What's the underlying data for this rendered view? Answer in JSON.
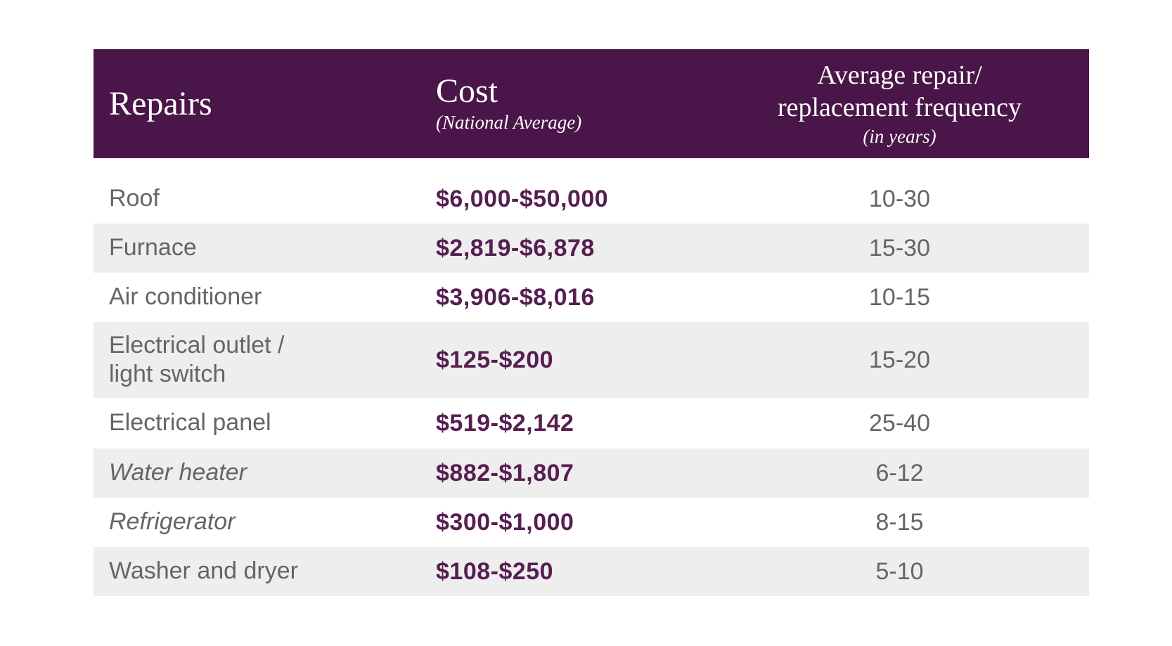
{
  "table": {
    "header": {
      "repairs": "Repairs",
      "cost_title": "Cost",
      "cost_subtitle": "(National Average)",
      "frequency_line1": "Average repair/",
      "frequency_line2": "replacement frequency",
      "frequency_subtitle": "(in years)"
    },
    "rows": [
      {
        "repair": "Roof",
        "cost": "$6,000-$50,000",
        "frequency": "10-30"
      },
      {
        "repair": "Furnace",
        "cost": "$2,819-$6,878",
        "frequency": "15-30"
      },
      {
        "repair": "Air conditioner",
        "cost": "$3,906-$8,016",
        "frequency": "10-15"
      },
      {
        "repair": "Electrical outlet /",
        "repair_line2": "light switch",
        "cost": "$125-$200",
        "frequency": "15-20"
      },
      {
        "repair": "Electrical panel",
        "cost": "$519-$2,142",
        "frequency": "25-40"
      },
      {
        "repair": "Water heater",
        "cost": "$882-$1,807",
        "frequency": "6-12"
      },
      {
        "repair": "Refrigerator",
        "cost": "$300-$1,000",
        "frequency": "8-15"
      },
      {
        "repair": "Washer and dryer",
        "cost": "$108-$250",
        "frequency": "5-10"
      }
    ]
  },
  "colors": {
    "header_background": "#4A1548",
    "header_text": "#FFFFFF",
    "cost_text": "#571E52",
    "body_text": "#656565",
    "stripe_background": "#EEEEEE"
  },
  "chart_data": {
    "type": "table",
    "title": "",
    "columns": [
      "Repairs",
      "Cost (National Average)",
      "Average repair/replacement frequency (in years)"
    ],
    "rows": [
      [
        "Roof",
        "$6,000-$50,000",
        "10-30"
      ],
      [
        "Furnace",
        "$2,819-$6,878",
        "15-30"
      ],
      [
        "Air conditioner",
        "$3,906-$8,016",
        "10-15"
      ],
      [
        "Electrical outlet / light switch",
        "$125-$200",
        "15-20"
      ],
      [
        "Electrical panel",
        "$519-$2,142",
        "25-40"
      ],
      [
        "Water heater",
        "$882-$1,807",
        "6-12"
      ],
      [
        "Refrigerator",
        "$300-$1,000",
        "8-15"
      ],
      [
        "Washer and dryer",
        "$108-$250",
        "5-10"
      ]
    ],
    "layout": {
      "zebra_striping": true,
      "header_style": "dark-purple",
      "grid": false
    }
  }
}
